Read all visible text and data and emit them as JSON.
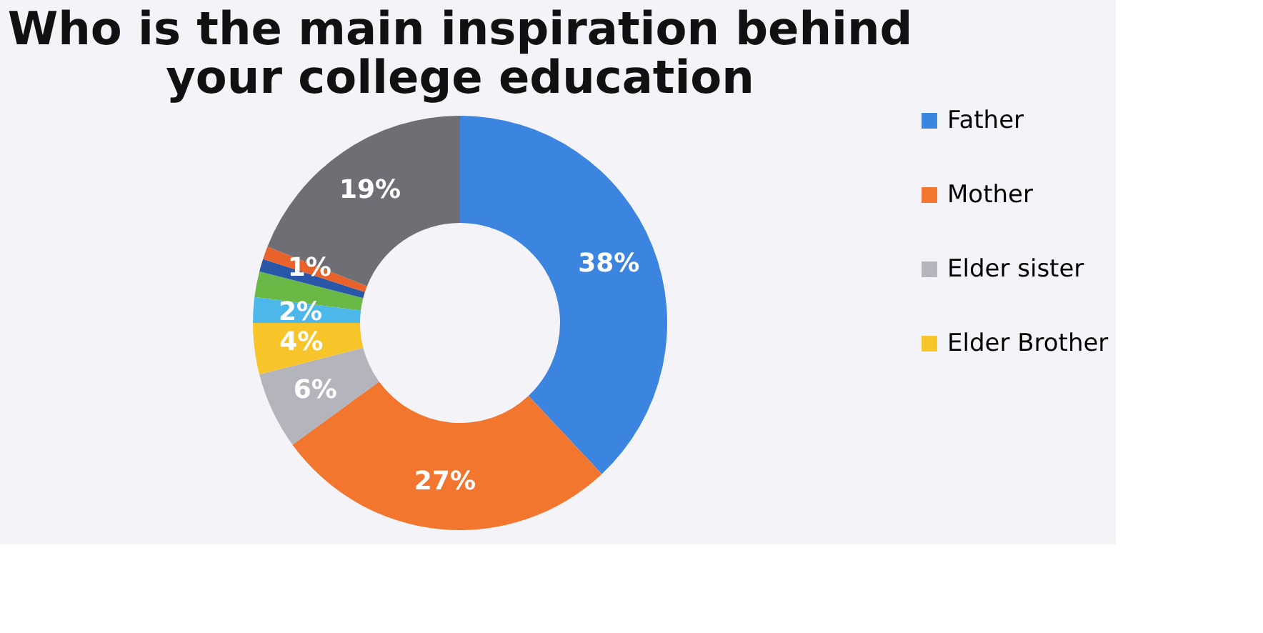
{
  "chart_data": {
    "type": "donut",
    "title": [
      "Who is the main inspiration behind",
      "your college education"
    ],
    "categories": [
      "Father",
      "Mother",
      "Elder sister",
      "Elder Brother",
      null,
      null,
      null,
      null,
      null
    ],
    "values": [
      38,
      27,
      6,
      4,
      2,
      2,
      1,
      1,
      19
    ],
    "colors": [
      "#3b84e0",
      "#f2762e",
      "#b4b4bc",
      "#f7c52a",
      "#4cb8ea",
      "#6ab845",
      "#2a56a8",
      "#e8622a",
      "#6e6e74"
    ],
    "value_labels": [
      "38%",
      "27%",
      "6%",
      "4%",
      "2%",
      null,
      null,
      "1%",
      "19%"
    ],
    "legend": "right"
  }
}
